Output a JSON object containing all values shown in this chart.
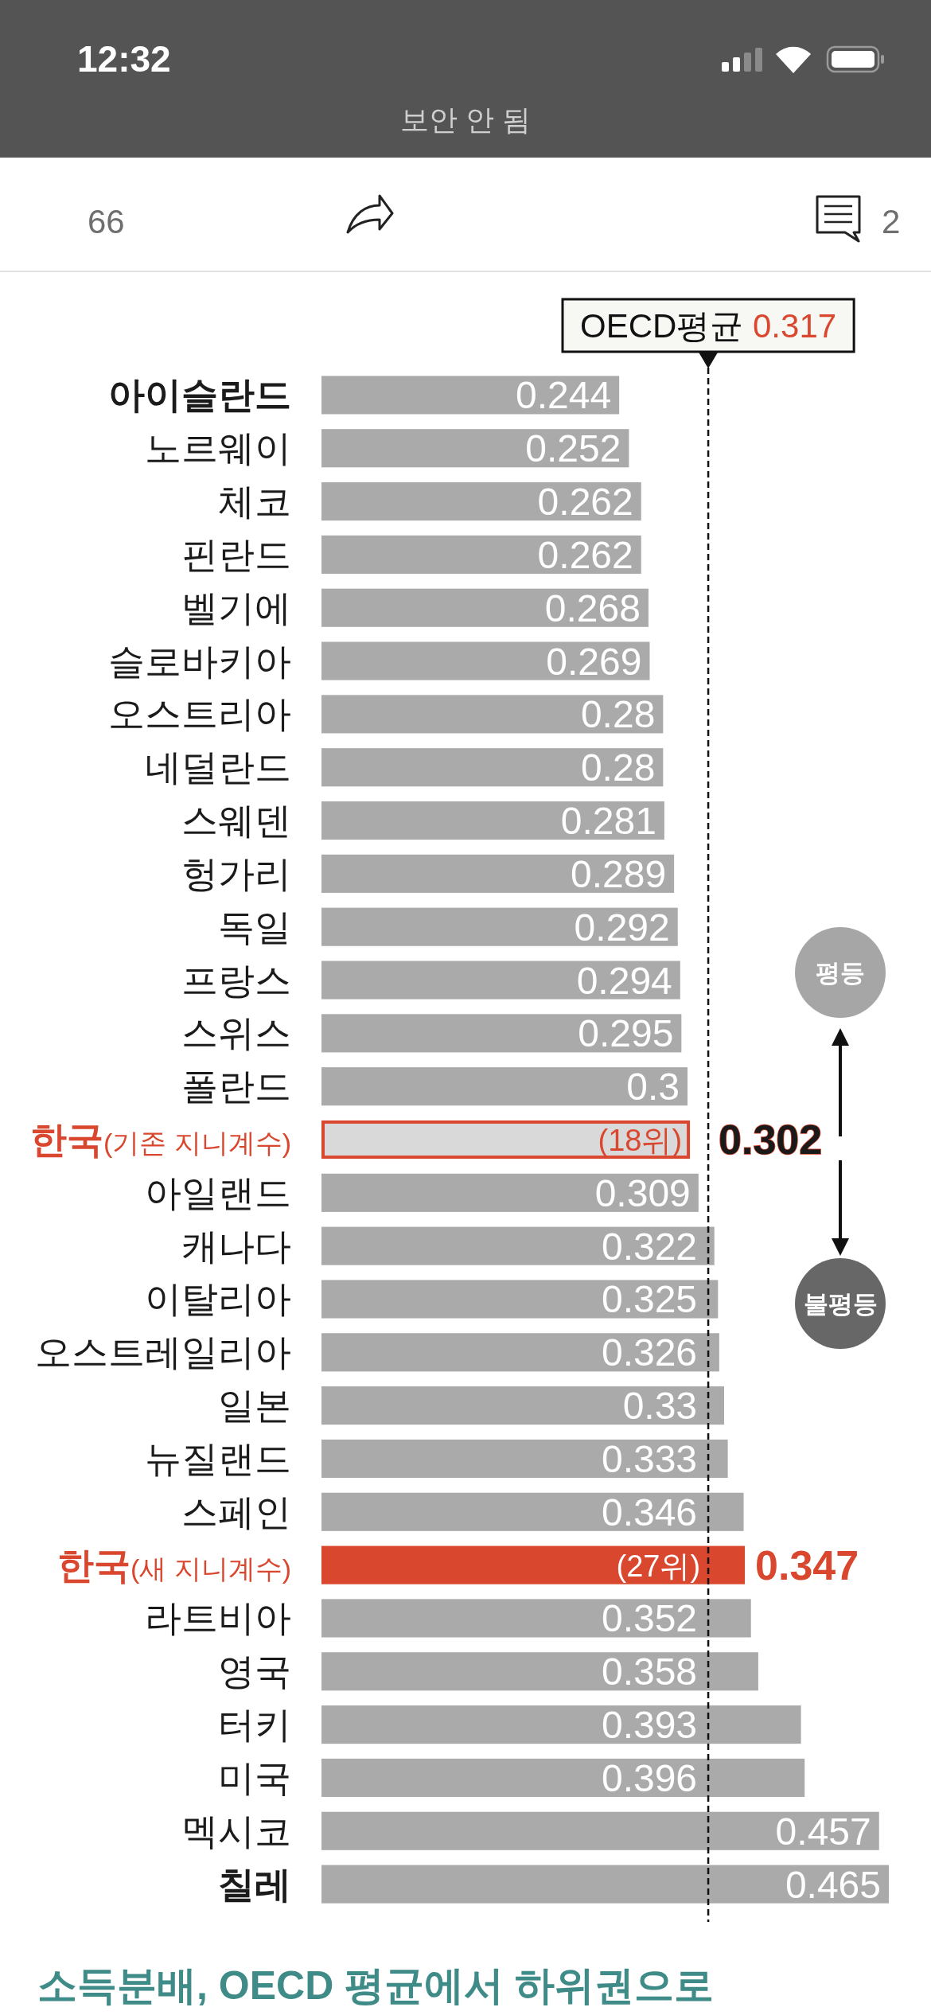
{
  "chart_data": {
    "type": "bar",
    "orientation": "horizontal",
    "categories": [
      "아이슬란드",
      "노르웨이",
      "체코",
      "핀란드",
      "벨기에",
      "슬로바키아",
      "오스트리아",
      "네덜란드",
      "스웨덴",
      "헝가리",
      "독일",
      "프랑스",
      "스위스",
      "폴란드",
      "**한국**(기존 지니계수)",
      "아일랜드",
      "캐나다",
      "이탈리아",
      "오스트레일리아",
      "일본",
      "뉴질랜드",
      "스페인",
      "**한국**(새 지니계수)",
      "라트비아",
      "영국",
      "터키",
      "미국",
      "멕시코",
      "칠레"
    ],
    "values": [
      0.244,
      0.252,
      0.262,
      0.262,
      0.268,
      0.269,
      0.28,
      0.28,
      0.281,
      0.289,
      0.292,
      0.294,
      0.295,
      0.3,
      0.302,
      0.309,
      0.322,
      0.325,
      0.326,
      0.33,
      0.333,
      0.346,
      0.347,
      0.352,
      0.358,
      0.393,
      0.396,
      0.457,
      0.465
    ],
    "colors": [
      "#aaaaaa",
      "#aaaaaa",
      "#aaaaaa",
      "#aaaaaa",
      "#aaaaaa",
      "#aaaaaa",
      "#aaaaaa",
      "#aaaaaa",
      "#aaaaaa",
      "#aaaaaa",
      "#aaaaaa",
      "#aaaaaa",
      "#aaaaaa",
      "#aaaaaa",
      "#d9d9d9",
      "#aaaaaa",
      "#aaaaaa",
      "#aaaaaa",
      "#aaaaaa",
      "#aaaaaa",
      "#aaaaaa",
      "#aaaaaa",
      "#d9472f",
      "#aaaaaa",
      "#aaaaaa",
      "#aaaaaa",
      "#aaaaaa",
      "#aaaaaa",
      "#aaaaaa"
    ],
    "tick_labels": "y",
    "data_labels": true,
    "ref_lines": [
      {
        "axis": "x",
        "value": 0.317,
        "label": "OECD평균 0.317",
        "color": "#111111",
        "line_style": "dashed"
      }
    ],
    "annotations": [
      "12:32",
      "보안 안 됨",
      "66",
      "2",
      "평등",
      "불평등",
      {
        "text": "(18위)",
        "x": 0.302,
        "y": "**한국**(기존 지니계수)"
      },
      {
        "text": "(27위)",
        "x": 0.317,
        "y": "**한국**(새 지니계수)"
      },
      "소득분배, OECD 평균에서 하위권으로"
    ]
  }
}
